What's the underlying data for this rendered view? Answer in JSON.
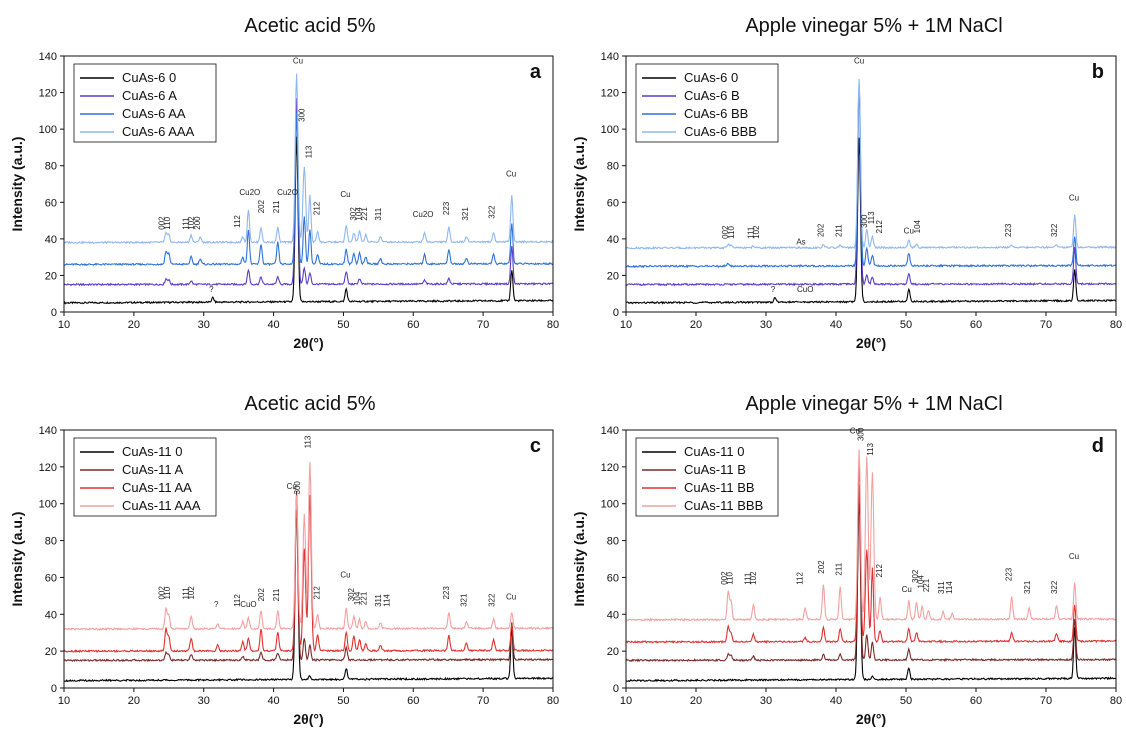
{
  "chart_data": [
    {
      "type": "line",
      "panel": "a",
      "title": "Acetic acid 5%",
      "xlabel": "2θ(°)",
      "ylabel": "Intensity (a.u.)",
      "xlim": [
        10,
        80
      ],
      "ylim": [
        0,
        140
      ],
      "xticks": [
        10,
        20,
        30,
        40,
        50,
        60,
        70,
        80
      ],
      "yticks": [
        0,
        20,
        40,
        60,
        80,
        100,
        120,
        140
      ],
      "legend_position": "top-left",
      "series": [
        {
          "name": "CuAs-6 0",
          "color": "#000000",
          "baseline": 5,
          "peaks": [
            [
              31.3,
              2.5
            ],
            [
              43.3,
              90
            ],
            [
              50.4,
              7
            ],
            [
              74.1,
              17
            ]
          ]
        },
        {
          "name": "CuAs-6 A",
          "color": "#5a3cc8",
          "baseline": 15,
          "peaks": [
            [
              24.6,
              3
            ],
            [
              25.0,
              2.5
            ],
            [
              28.2,
              2
            ],
            [
              36.4,
              8
            ],
            [
              38.2,
              4
            ],
            [
              40.6,
              4
            ],
            [
              43.3,
              102
            ],
            [
              44.4,
              9
            ],
            [
              45.2,
              6
            ],
            [
              50.4,
              7
            ],
            [
              52.3,
              3
            ],
            [
              61.6,
              2
            ],
            [
              65.1,
              3
            ],
            [
              74.1,
              21
            ]
          ]
        },
        {
          "name": "CuAs-6 AA",
          "color": "#2f72d8",
          "baseline": 26,
          "peaks": [
            [
              24.6,
              7
            ],
            [
              25.0,
              6
            ],
            [
              28.2,
              4
            ],
            [
              29.5,
              3
            ],
            [
              35.6,
              4
            ],
            [
              36.4,
              19
            ],
            [
              38.2,
              11
            ],
            [
              40.6,
              12
            ],
            [
              43.3,
              82
            ],
            [
              44.4,
              26
            ],
            [
              45.2,
              19
            ],
            [
              46.3,
              5
            ],
            [
              50.4,
              8
            ],
            [
              51.5,
              6
            ],
            [
              52.3,
              6
            ],
            [
              53.2,
              4
            ],
            [
              55.3,
              3
            ],
            [
              61.6,
              5
            ],
            [
              65.1,
              8
            ],
            [
              67.6,
              3
            ],
            [
              71.5,
              5
            ],
            [
              74.1,
              22
            ]
          ]
        },
        {
          "name": "CuAs-6 AAA",
          "color": "#8fb8ee",
          "baseline": 38,
          "peaks": [
            [
              24.6,
              5
            ],
            [
              25.0,
              4
            ],
            [
              28.2,
              4
            ],
            [
              29.5,
              3
            ],
            [
              35.6,
              3
            ],
            [
              36.4,
              18
            ],
            [
              38.2,
              8
            ],
            [
              40.6,
              8
            ],
            [
              43.3,
              92
            ],
            [
              44.4,
              41
            ],
            [
              45.2,
              26
            ],
            [
              46.3,
              6
            ],
            [
              50.4,
              9
            ],
            [
              51.5,
              5
            ],
            [
              52.3,
              6
            ],
            [
              53.2,
              4
            ],
            [
              55.3,
              3
            ],
            [
              61.6,
              5
            ],
            [
              65.1,
              8
            ],
            [
              67.6,
              3
            ],
            [
              71.5,
              5
            ],
            [
              74.1,
              26
            ]
          ]
        }
      ],
      "annotations": [
        "002",
        "110",
        "111",
        "102",
        "200",
        "112",
        "Cu2O",
        "202",
        "211",
        "Cu2O",
        "Cu",
        "300",
        "113",
        "212",
        "Cu",
        "302",
        "104",
        "221",
        "311",
        "Cu2O",
        "223",
        "321",
        "322",
        "Cu",
        "?"
      ]
    },
    {
      "type": "line",
      "panel": "b",
      "title": "Apple vinegar 5% + 1M NaCl",
      "xlabel": "2θ(°)",
      "ylabel": "Intensity (a.u.)",
      "xlim": [
        10,
        80
      ],
      "ylim": [
        0,
        140
      ],
      "xticks": [
        10,
        20,
        30,
        40,
        50,
        60,
        70,
        80
      ],
      "yticks": [
        0,
        20,
        40,
        60,
        80,
        100,
        120,
        140
      ],
      "legend_position": "top-left",
      "series": [
        {
          "name": "CuAs-6 0",
          "color": "#000000",
          "baseline": 5,
          "peaks": [
            [
              31.3,
              2.5
            ],
            [
              43.3,
              90
            ],
            [
              50.4,
              7
            ],
            [
              74.1,
              17
            ]
          ]
        },
        {
          "name": "CuAs-6 B",
          "color": "#5a3cc8",
          "baseline": 15,
          "peaks": [
            [
              43.3,
              108
            ],
            [
              44.4,
              5
            ],
            [
              45.2,
              4
            ],
            [
              50.4,
              6
            ],
            [
              74.1,
              20
            ]
          ]
        },
        {
          "name": "CuAs-6 BB",
          "color": "#2f72d8",
          "baseline": 25,
          "peaks": [
            [
              24.6,
              1.5
            ],
            [
              43.3,
              100
            ],
            [
              44.4,
              10
            ],
            [
              45.2,
              6
            ],
            [
              50.4,
              7
            ],
            [
              74.1,
              16
            ]
          ]
        },
        {
          "name": "CuAs-6 BBB",
          "color": "#8fb8ee",
          "baseline": 35,
          "peaks": [
            [
              24.6,
              2
            ],
            [
              25.0,
              1.5
            ],
            [
              28.2,
              1
            ],
            [
              38.2,
              1.5
            ],
            [
              40.6,
              1.5
            ],
            [
              43.3,
              92
            ],
            [
              44.4,
              10
            ],
            [
              45.2,
              6
            ],
            [
              50.4,
              4
            ],
            [
              51.5,
              2
            ],
            [
              65.1,
              1.5
            ],
            [
              71.5,
              1.5
            ],
            [
              74.1,
              18
            ]
          ]
        }
      ],
      "annotations": [
        "002",
        "110",
        "111",
        "102",
        "As",
        "202",
        "211",
        "Cu",
        "300",
        "113",
        "212",
        "Cu",
        "104",
        "223",
        "322",
        "Cu",
        "?",
        "CuO"
      ]
    },
    {
      "type": "line",
      "panel": "c",
      "title": "Acetic acid 5%",
      "xlabel": "2θ(°)",
      "ylabel": "Intensity (a.u.)",
      "xlim": [
        10,
        80
      ],
      "ylim": [
        0,
        140
      ],
      "xticks": [
        10,
        20,
        30,
        40,
        50,
        60,
        70,
        80
      ],
      "yticks": [
        0,
        20,
        40,
        60,
        80,
        100,
        120,
        140
      ],
      "legend_position": "top-left",
      "series": [
        {
          "name": "CuAs-11 0",
          "color": "#000000",
          "baseline": 4,
          "peaks": [
            [
              43.3,
              96
            ],
            [
              45.2,
              2
            ],
            [
              50.4,
              6
            ],
            [
              74.1,
              28
            ]
          ]
        },
        {
          "name": "CuAs-11 A",
          "color": "#7a2a2a",
          "baseline": 15,
          "peaks": [
            [
              24.6,
              4
            ],
            [
              25.0,
              3
            ],
            [
              28.2,
              3
            ],
            [
              35.6,
              2
            ],
            [
              38.2,
              4
            ],
            [
              40.6,
              4
            ],
            [
              43.3,
              92
            ],
            [
              44.4,
              12
            ],
            [
              45.2,
              8
            ],
            [
              50.4,
              7
            ],
            [
              74.1,
              20
            ]
          ]
        },
        {
          "name": "CuAs-11 AA",
          "color": "#e03030",
          "baseline": 20,
          "peaks": [
            [
              24.6,
              12
            ],
            [
              25.0,
              8
            ],
            [
              28.2,
              7
            ],
            [
              32.0,
              3
            ],
            [
              35.6,
              5
            ],
            [
              36.4,
              7
            ],
            [
              38.2,
              12
            ],
            [
              40.6,
              10
            ],
            [
              43.3,
              80
            ],
            [
              44.4,
              55
            ],
            [
              45.2,
              84
            ],
            [
              46.3,
              9
            ],
            [
              50.4,
              10
            ],
            [
              51.5,
              8
            ],
            [
              52.3,
              6
            ],
            [
              53.2,
              4
            ],
            [
              55.3,
              3
            ],
            [
              65.1,
              8
            ],
            [
              67.6,
              4
            ],
            [
              71.5,
              6
            ],
            [
              74.1,
              14
            ]
          ]
        },
        {
          "name": "CuAs-11 AAA",
          "color": "#f4a0a0",
          "baseline": 32,
          "peaks": [
            [
              24.6,
              11
            ],
            [
              25.0,
              8
            ],
            [
              28.2,
              7
            ],
            [
              32.0,
              3
            ],
            [
              35.6,
              4
            ],
            [
              36.4,
              6
            ],
            [
              38.2,
              10
            ],
            [
              40.6,
              10
            ],
            [
              43.3,
              72
            ],
            [
              44.4,
              62
            ],
            [
              45.2,
              90
            ],
            [
              46.3,
              8
            ],
            [
              50.4,
              11
            ],
            [
              51.5,
              7
            ],
            [
              52.3,
              5
            ],
            [
              53.2,
              4
            ],
            [
              55.3,
              3
            ],
            [
              65.1,
              9
            ],
            [
              67.6,
              4
            ],
            [
              71.5,
              5
            ],
            [
              74.1,
              9
            ]
          ]
        }
      ],
      "annotations": [
        "002",
        "110",
        "111",
        "102",
        "?",
        "112",
        "CuO",
        "202",
        "211",
        "Cu",
        "300",
        "113",
        "212",
        "Cu",
        "302",
        "104",
        "221",
        "311",
        "114",
        "223",
        "321",
        "322",
        "Cu"
      ]
    },
    {
      "type": "line",
      "panel": "d",
      "title": "Apple vinegar 5% + 1M NaCl",
      "xlabel": "2θ(°)",
      "ylabel": "Intensity (a.u.)",
      "xlim": [
        10,
        80
      ],
      "ylim": [
        0,
        140
      ],
      "xticks": [
        10,
        20,
        30,
        40,
        50,
        60,
        70,
        80
      ],
      "yticks": [
        0,
        20,
        40,
        60,
        80,
        100,
        120,
        140
      ],
      "legend_position": "top-left",
      "series": [
        {
          "name": "CuAs-11 0",
          "color": "#000000",
          "baseline": 4,
          "peaks": [
            [
              43.3,
              100
            ],
            [
              45.2,
              2
            ],
            [
              50.4,
              6
            ],
            [
              74.1,
              28
            ]
          ]
        },
        {
          "name": "CuAs-11 B",
          "color": "#7a2a2a",
          "baseline": 15,
          "peaks": [
            [
              24.6,
              3
            ],
            [
              25.0,
              3
            ],
            [
              28.2,
              2
            ],
            [
              38.2,
              3
            ],
            [
              40.6,
              3
            ],
            [
              43.3,
              95
            ],
            [
              44.4,
              14
            ],
            [
              45.2,
              10
            ],
            [
              50.4,
              6
            ],
            [
              74.1,
              22
            ]
          ]
        },
        {
          "name": "CuAs-11 BB",
          "color": "#e03030",
          "baseline": 25,
          "peaks": [
            [
              24.6,
              8
            ],
            [
              25.0,
              5
            ],
            [
              28.2,
              4
            ],
            [
              35.6,
              2
            ],
            [
              38.2,
              8
            ],
            [
              40.6,
              7
            ],
            [
              43.3,
              96
            ],
            [
              44.4,
              50
            ],
            [
              45.2,
              40
            ],
            [
              46.3,
              6
            ],
            [
              50.4,
              7
            ],
            [
              51.5,
              5
            ],
            [
              65.1,
              5
            ],
            [
              71.5,
              4
            ],
            [
              74.1,
              20
            ]
          ]
        },
        {
          "name": "CuAs-11 BBB",
          "color": "#f4a0a0",
          "baseline": 37,
          "peaks": [
            [
              24.6,
              15
            ],
            [
              25.0,
              10
            ],
            [
              28.2,
              8
            ],
            [
              35.6,
              6
            ],
            [
              38.2,
              19
            ],
            [
              40.6,
              18
            ],
            [
              43.3,
              92
            ],
            [
              44.4,
              88
            ],
            [
              45.2,
              80
            ],
            [
              46.3,
              12
            ],
            [
              50.4,
              10
            ],
            [
              51.5,
              9
            ],
            [
              52.3,
              7
            ],
            [
              53.2,
              5
            ],
            [
              55.3,
              4
            ],
            [
              56.6,
              3
            ],
            [
              65.1,
              12
            ],
            [
              67.6,
              6
            ],
            [
              71.5,
              7
            ],
            [
              74.1,
              20
            ]
          ]
        }
      ],
      "annotations": [
        "002",
        "110",
        "111",
        "102",
        "112",
        "202",
        "211",
        "Cu",
        "300",
        "113",
        "212",
        "Cu",
        "302",
        "104",
        "221",
        "311",
        "114",
        "223",
        "321",
        "322",
        "Cu"
      ]
    }
  ]
}
